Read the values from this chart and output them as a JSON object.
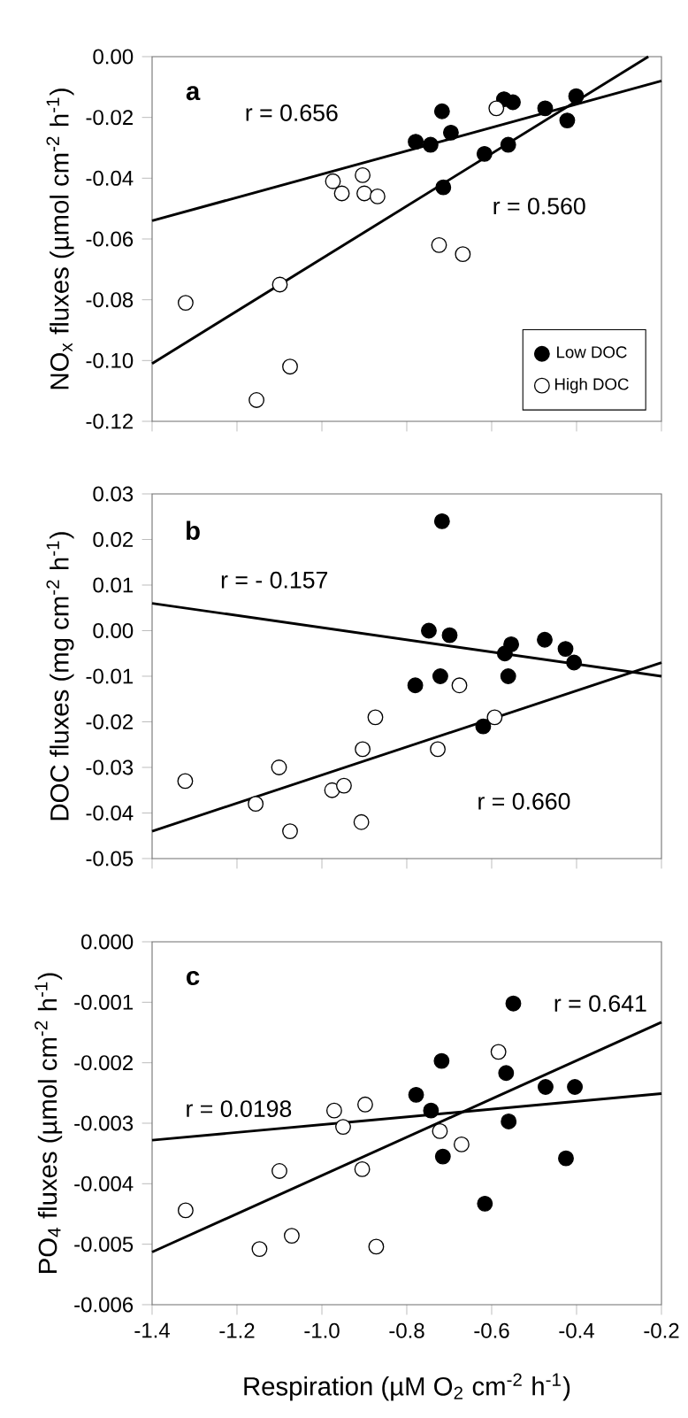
{
  "chart_data": [
    {
      "type": "scatter",
      "title": "a",
      "ylabel": "NO$_{x}$ fluxes (µmol cm$^{-2}$ h$^{-1}$)",
      "xlim": [
        -1.4,
        -0.2
      ],
      "ylim": [
        -0.12,
        0.0
      ],
      "xticks": [
        -1.4,
        -1.2,
        -1.0,
        -0.8,
        -0.6,
        -0.4,
        -0.2
      ],
      "yticks": [
        {
          "value": -0.12,
          "label": "-0.12"
        },
        {
          "value": -0.1,
          "label": "-0.10"
        },
        {
          "value": -0.08,
          "label": "-0.08"
        },
        {
          "value": -0.06,
          "label": "-0.06"
        },
        {
          "value": -0.04,
          "label": "-0.04"
        },
        {
          "value": -0.02,
          "label": "-0.02"
        },
        {
          "value": 0.0,
          "label": "0.00"
        }
      ],
      "tick_labels": "y",
      "legend": "bottom right",
      "marker": "circle",
      "series": [
        {
          "name": "Low DOC",
          "color": "#000000",
          "x": [
            -0.779,
            -0.744,
            -0.717,
            -0.696,
            -0.714,
            -0.617,
            -0.571,
            -0.561,
            -0.55,
            -0.474,
            -0.422,
            -0.401
          ],
          "values": [
            -0.028,
            -0.029,
            -0.018,
            -0.025,
            -0.043,
            -0.032,
            -0.014,
            -0.029,
            -0.015,
            -0.017,
            -0.021,
            -0.013
          ]
        },
        {
          "name": "High DOC",
          "color": "#ffffff",
          "x": [
            -1.321,
            -1.154,
            -1.099,
            -1.075,
            -0.974,
            -0.953,
            -0.904,
            -0.9,
            -0.869,
            -0.724,
            -0.668,
            -0.589
          ],
          "values": [
            -0.081,
            -0.113,
            -0.075,
            -0.102,
            -0.041,
            -0.045,
            -0.039,
            -0.045,
            -0.046,
            -0.062,
            -0.065,
            -0.017
          ]
        },
        {
          "type": "line",
          "color": "#000000",
          "marker": "none",
          "x": [
            -1.4,
            -0.2
          ],
          "values": [
            -0.054,
            -0.008
          ]
        },
        {
          "type": "line",
          "color": "#000000",
          "marker": "none",
          "x": [
            -1.4,
            -0.231
          ],
          "values": [
            -0.101,
            0.0
          ]
        }
      ],
      "annotations": [
        "r = 0.656",
        "r = 0.560"
      ]
    },
    {
      "type": "scatter",
      "title": "b",
      "ylabel": "DOC fluxes (mg cm$^{-2}$ h$^{-1}$)",
      "xlim": [
        -1.4,
        -0.2
      ],
      "ylim": [
        -0.05,
        0.03
      ],
      "xticks": [
        -1.4,
        -1.2,
        -1.0,
        -0.8,
        -0.6,
        -0.4,
        -0.2
      ],
      "yticks": [
        {
          "value": -0.05,
          "label": "-0.05"
        },
        {
          "value": -0.04,
          "label": "-0.04"
        },
        {
          "value": -0.03,
          "label": "-0.03"
        },
        {
          "value": -0.02,
          "label": "-0.02"
        },
        {
          "value": -0.01,
          "label": "-0.01"
        },
        {
          "value": 0.0,
          "label": "0.00"
        },
        {
          "value": 0.01,
          "label": "0.01"
        },
        {
          "value": 0.02,
          "label": "0.02"
        },
        {
          "value": 0.03,
          "label": "0.03"
        }
      ],
      "tick_labels": "y",
      "marker": "circle",
      "series": [
        {
          "color": "#000000",
          "x": [
            -0.717,
            -0.748,
            -0.699,
            -0.78,
            -0.721,
            -0.62,
            -0.569,
            -0.554,
            -0.561,
            -0.475,
            -0.426,
            -0.406
          ],
          "values": [
            0.024,
            0.0,
            -0.001,
            -0.012,
            -0.01,
            -0.021,
            -0.005,
            -0.003,
            -0.01,
            -0.002,
            -0.004,
            -0.007
          ]
        },
        {
          "color": "#ffffff",
          "x": [
            -1.322,
            -1.156,
            -1.101,
            -1.075,
            -0.976,
            -0.948,
            -0.904,
            -0.907,
            -0.874,
            -0.727,
            -0.676,
            -0.593
          ],
          "values": [
            -0.033,
            -0.038,
            -0.03,
            -0.044,
            -0.035,
            -0.034,
            -0.026,
            -0.042,
            -0.019,
            -0.026,
            -0.012,
            -0.019
          ]
        },
        {
          "type": "line",
          "color": "#000000",
          "marker": "none",
          "x": [
            -1.4,
            -0.2
          ],
          "values": [
            0.006,
            -0.01
          ]
        },
        {
          "type": "line",
          "color": "#000000",
          "marker": "none",
          "x": [
            -1.4,
            -0.2
          ],
          "values": [
            -0.044,
            -0.007
          ]
        }
      ],
      "annotations": [
        "r = - 0.157",
        "r = 0.660"
      ]
    },
    {
      "type": "scatter",
      "title": "c",
      "xlabel": "Respiration (µM O$_{2}$ cm$^{-2}$ h$^{-1}$)",
      "ylabel": "PO$_{4}$ fluxes (µmol cm$^{-2}$ h$^{-1}$)",
      "xlim": [
        -1.4,
        -0.2
      ],
      "ylim": [
        -0.006,
        0.0
      ],
      "xticks": [
        -1.4,
        -1.2,
        {
          "value": -1.0,
          "label": "-1.0"
        },
        -0.8,
        -0.6,
        -0.4,
        -0.2
      ],
      "yticks": [
        {
          "value": -0.006,
          "label": "-0.006"
        },
        {
          "value": -0.005,
          "label": "-0.005"
        },
        {
          "value": -0.004,
          "label": "-0.004"
        },
        {
          "value": -0.003,
          "label": "-0.003"
        },
        {
          "value": -0.002,
          "label": "-0.002"
        },
        {
          "value": -0.001,
          "label": "-0.001"
        },
        {
          "value": 0.0,
          "label": "0.000"
        }
      ],
      "marker": "circle",
      "series": [
        {
          "color": "#000000",
          "x": [
            -0.549,
            -0.718,
            -0.778,
            -0.743,
            -0.715,
            -0.566,
            -0.56,
            -0.473,
            -0.404,
            -0.425,
            -0.616
          ],
          "values": [
            -0.00102,
            -0.00197,
            -0.00253,
            -0.00279,
            -0.00355,
            -0.00217,
            -0.00297,
            -0.0024,
            -0.0024,
            -0.00358,
            -0.00433
          ]
        },
        {
          "color": "#ffffff",
          "x": [
            -1.321,
            -1.147,
            -1.1,
            -1.071,
            -0.971,
            -0.95,
            -0.898,
            -0.905,
            -0.872,
            -0.722,
            -0.671,
            -0.584
          ],
          "values": [
            -0.00444,
            -0.00508,
            -0.00379,
            -0.00486,
            -0.00279,
            -0.00306,
            -0.00269,
            -0.00376,
            -0.00504,
            -0.00313,
            -0.00335,
            -0.00182
          ]
        },
        {
          "type": "line",
          "color": "#000000",
          "marker": "none",
          "x": [
            -1.4,
            -0.2
          ],
          "values": [
            -0.00328,
            -0.00251
          ]
        },
        {
          "type": "line",
          "color": "#000000",
          "marker": "none",
          "x": [
            -1.4,
            -0.2
          ],
          "values": [
            -0.00513,
            -0.00133
          ]
        }
      ],
      "annotations": [
        "r = 0.0198",
        "r = 0.641"
      ]
    }
  ]
}
